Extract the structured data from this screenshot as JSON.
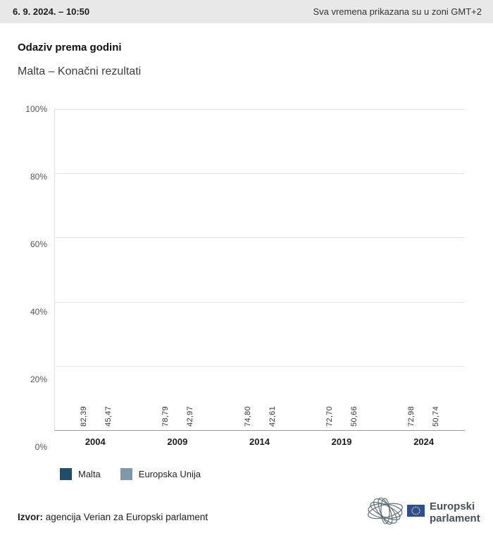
{
  "topbar": {
    "datetime": "6. 9. 2024. – 10:50",
    "timezone_note": "Sva vremena prikazana su u zoni GMT+2"
  },
  "header": {
    "title": "Odaziv prema godini",
    "subtitle": "Malta – Konačni rezultati"
  },
  "chart_data": {
    "type": "bar",
    "title": "Odaziv prema godini",
    "subtitle": "Malta – Konačni rezultati",
    "categories": [
      "2004",
      "2009",
      "2014",
      "2019",
      "2024"
    ],
    "series": [
      {
        "name": "Malta",
        "color": "#1d4e6b",
        "values": [
          82.39,
          78.79,
          74.8,
          72.7,
          72.98
        ]
      },
      {
        "name": "Europska Unija",
        "color": "#7e99ac",
        "values": [
          45.47,
          42.97,
          42.61,
          50.66,
          50.74
        ]
      }
    ],
    "value_labels": [
      [
        "82,39",
        "78,79",
        "74,80",
        "72,70",
        "72,98"
      ],
      [
        "45,47",
        "42,97",
        "42,61",
        "50,66",
        "50,74"
      ]
    ],
    "xlabel": "",
    "ylabel": "",
    "ylim": [
      0,
      100
    ],
    "y_ticks": [
      "0%",
      "20%",
      "40%",
      "60%",
      "80%",
      "100%"
    ],
    "grid": true,
    "legend_position": "bottom",
    "value_label_orientation": "vertical"
  },
  "footer": {
    "source_label": "Izvor:",
    "source_text": " agencija Verian za Europski parlament",
    "logo_text_line1": "Europski",
    "logo_text_line2": "parlament"
  }
}
